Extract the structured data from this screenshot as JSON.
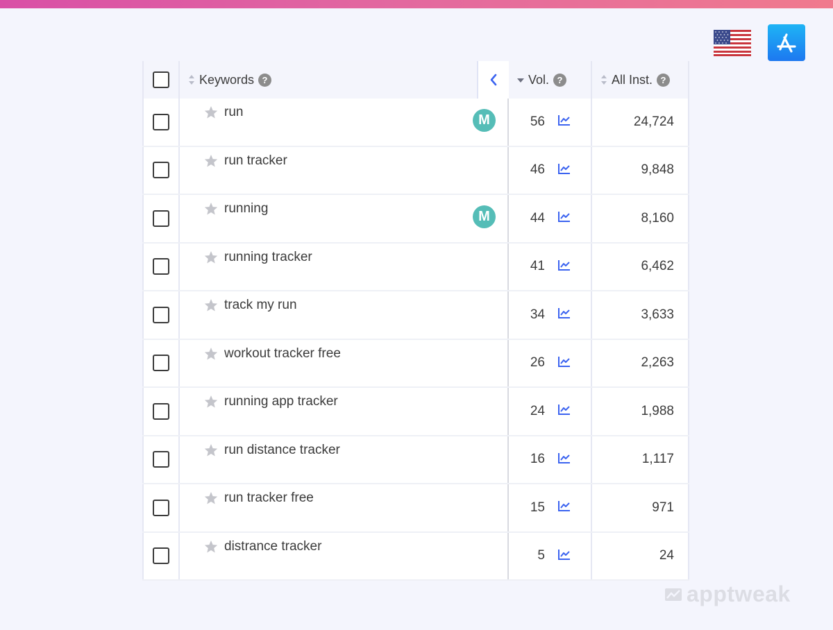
{
  "colors": {
    "accent": "#3b63f0",
    "badge": "#55bdb7",
    "background": "#f4f5fd",
    "gradient_start": "#d94fa6",
    "gradient_end": "#f07a8e"
  },
  "top_icons": {
    "country_icon": "us-flag-icon",
    "store_icon": "app-store-icon"
  },
  "table": {
    "columns": {
      "keywords": "Keywords",
      "volume": "Vol.",
      "installs": "All Inst."
    },
    "rows": [
      {
        "keyword": "run",
        "badge": "M",
        "volume": "56",
        "installs": "24,724"
      },
      {
        "keyword": "run tracker",
        "badge": "",
        "volume": "46",
        "installs": "9,848"
      },
      {
        "keyword": "running",
        "badge": "M",
        "volume": "44",
        "installs": "8,160"
      },
      {
        "keyword": "running tracker",
        "badge": "",
        "volume": "41",
        "installs": "6,462"
      },
      {
        "keyword": "track my run",
        "badge": "",
        "volume": "34",
        "installs": "3,633"
      },
      {
        "keyword": "workout tracker free",
        "badge": "",
        "volume": "26",
        "installs": "2,263"
      },
      {
        "keyword": "running app tracker",
        "badge": "",
        "volume": "24",
        "installs": "1,988"
      },
      {
        "keyword": "run distance tracker",
        "badge": "",
        "volume": "16",
        "installs": "1,117"
      },
      {
        "keyword": "run tracker free",
        "badge": "",
        "volume": "15",
        "installs": "971"
      },
      {
        "keyword": "distrance tracker",
        "badge": "",
        "volume": "5",
        "installs": "24"
      }
    ]
  },
  "brand": {
    "name": "apptweak"
  }
}
